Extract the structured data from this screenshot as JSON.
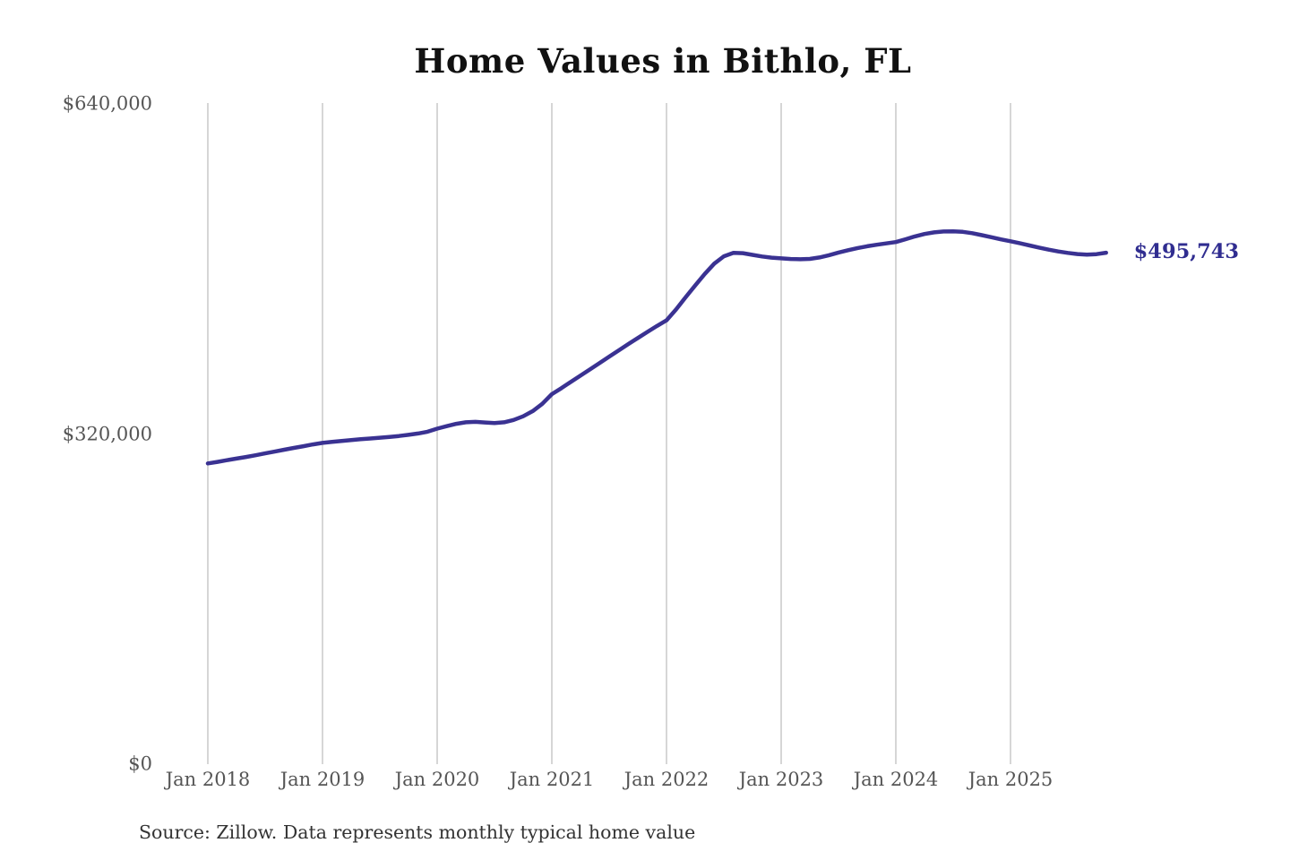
{
  "chart": {
    "source_note": "Source: Zillow. Data represents monthly typical home value",
    "colors": {
      "line": "#3a3292",
      "end_label": "#302d90",
      "gridline": "#cbcbcb",
      "axis_text": "#555555",
      "title_text": "#111111",
      "source_text": "#333333"
    }
  },
  "chart_data": {
    "type": "line",
    "title": "Home Values in Bithlo, FL",
    "xlabel": "",
    "ylabel": "",
    "ylim": [
      0,
      640000
    ],
    "grid": "vertical-only",
    "legend_position": "none",
    "x_start_month": "2018-01",
    "x_end_month": "2025-11",
    "x_tick_labels": [
      "Jan 2018",
      "Jan 2019",
      "Jan 2020",
      "Jan 2021",
      "Jan 2022",
      "Jan 2023",
      "Jan 2024",
      "Jan 2025"
    ],
    "y_ticks": [
      {
        "label": "$0",
        "value": 0
      },
      {
        "label": "$320,000",
        "value": 320000
      },
      {
        "label": "$640,000",
        "value": 640000
      }
    ],
    "end_annotation": {
      "label": "$495,743",
      "value": 495743
    },
    "series": [
      {
        "name": "Monthly typical home value",
        "values": [
          291500,
          293000,
          294600,
          296200,
          297800,
          299400,
          301200,
          303000,
          304800,
          306500,
          308200,
          309900,
          311400,
          312400,
          313300,
          314200,
          315000,
          315700,
          316400,
          317200,
          318100,
          319200,
          320500,
          322300,
          325200,
          327600,
          329900,
          331400,
          331800,
          331200,
          330600,
          331400,
          333600,
          337200,
          342200,
          349300,
          358600,
          364500,
          370600,
          376700,
          382800,
          388900,
          395000,
          401100,
          407200,
          413100,
          419000,
          424700,
          430200,
          440800,
          452500,
          464000,
          475200,
          485200,
          492300,
          495600,
          495300,
          493700,
          492100,
          491000,
          490300,
          489700,
          489400,
          489800,
          491200,
          493300,
          495900,
          498200,
          500300,
          502000,
          503500,
          504800,
          506100,
          508800,
          511600,
          513900,
          515500,
          516300,
          516500,
          516000,
          514700,
          512800,
          510800,
          508700,
          506900,
          504900,
          502800,
          500700,
          498700,
          497000,
          495600,
          494500,
          493900,
          494400,
          495743
        ]
      }
    ]
  }
}
